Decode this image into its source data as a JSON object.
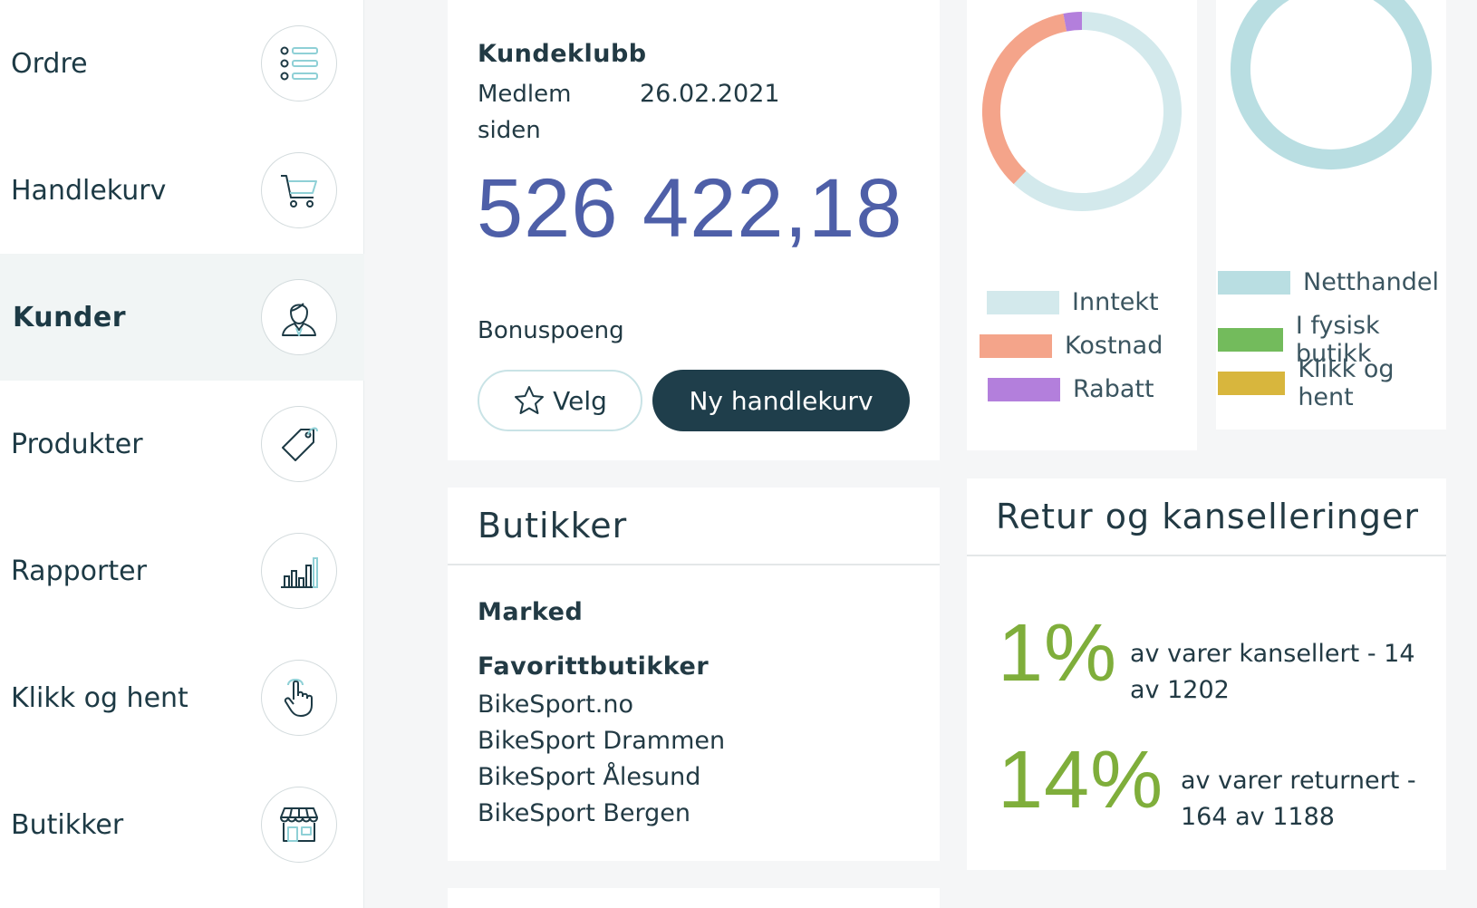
{
  "sidebar": {
    "items": [
      {
        "label": "Ordre",
        "icon": "list-icon",
        "active": false
      },
      {
        "label": "Handlekurv",
        "icon": "cart-icon",
        "active": false
      },
      {
        "label": "Kunder",
        "icon": "user-icon",
        "active": true
      },
      {
        "label": "Produkter",
        "icon": "tag-icon",
        "active": false
      },
      {
        "label": "Rapporter",
        "icon": "bar-chart-icon",
        "active": false
      },
      {
        "label": "Klikk og hent",
        "icon": "hand-pointer-icon",
        "active": false
      },
      {
        "label": "Butikker",
        "icon": "store-icon",
        "active": false
      }
    ]
  },
  "customer_club": {
    "title": "Kundeklubb",
    "member_since_label": "Medlem siden",
    "member_since_date": "26.02.2021",
    "bonus_value": "526 422,18",
    "bonus_label": "Bonuspoeng",
    "select_button": "Velg",
    "new_cart_button": "Ny handlekurv"
  },
  "finance_chart": {
    "chart_data": {
      "type": "pie",
      "donut": true,
      "categories": [
        "Inntekt",
        "Kostnad",
        "Rabatt"
      ],
      "values": [
        62,
        35,
        3
      ],
      "colors": [
        "#d3e9ec",
        "#f4a48a",
        "#b37fdc"
      ],
      "legend": "bottom"
    }
  },
  "channel_chart": {
    "chart_data": {
      "type": "pie",
      "donut": true,
      "categories": [
        "Netthandel",
        "I fysisk butikk",
        "Klikk og hent"
      ],
      "values": [
        97,
        3,
        0
      ],
      "colors": [
        "#b9dee2",
        "#73bb5c",
        "#d8b63d"
      ],
      "legend": "bottom"
    }
  },
  "stores": {
    "title": "Butikker",
    "market_label": "Marked",
    "favorites_label": "Favorittbutikker",
    "favorites": [
      "BikeSport.no",
      "BikeSport Drammen",
      "BikeSport Ålesund",
      "BikeSport Bergen"
    ]
  },
  "returns": {
    "title": "Retur og kanselleringer",
    "cancelled_pct": "1%",
    "cancelled_text": "av varer kansellert - 14 av 1202",
    "returned_pct": "14%",
    "returned_text": "av varer returnert - 164 av 1188",
    "accent_color": "#7fae3b"
  }
}
